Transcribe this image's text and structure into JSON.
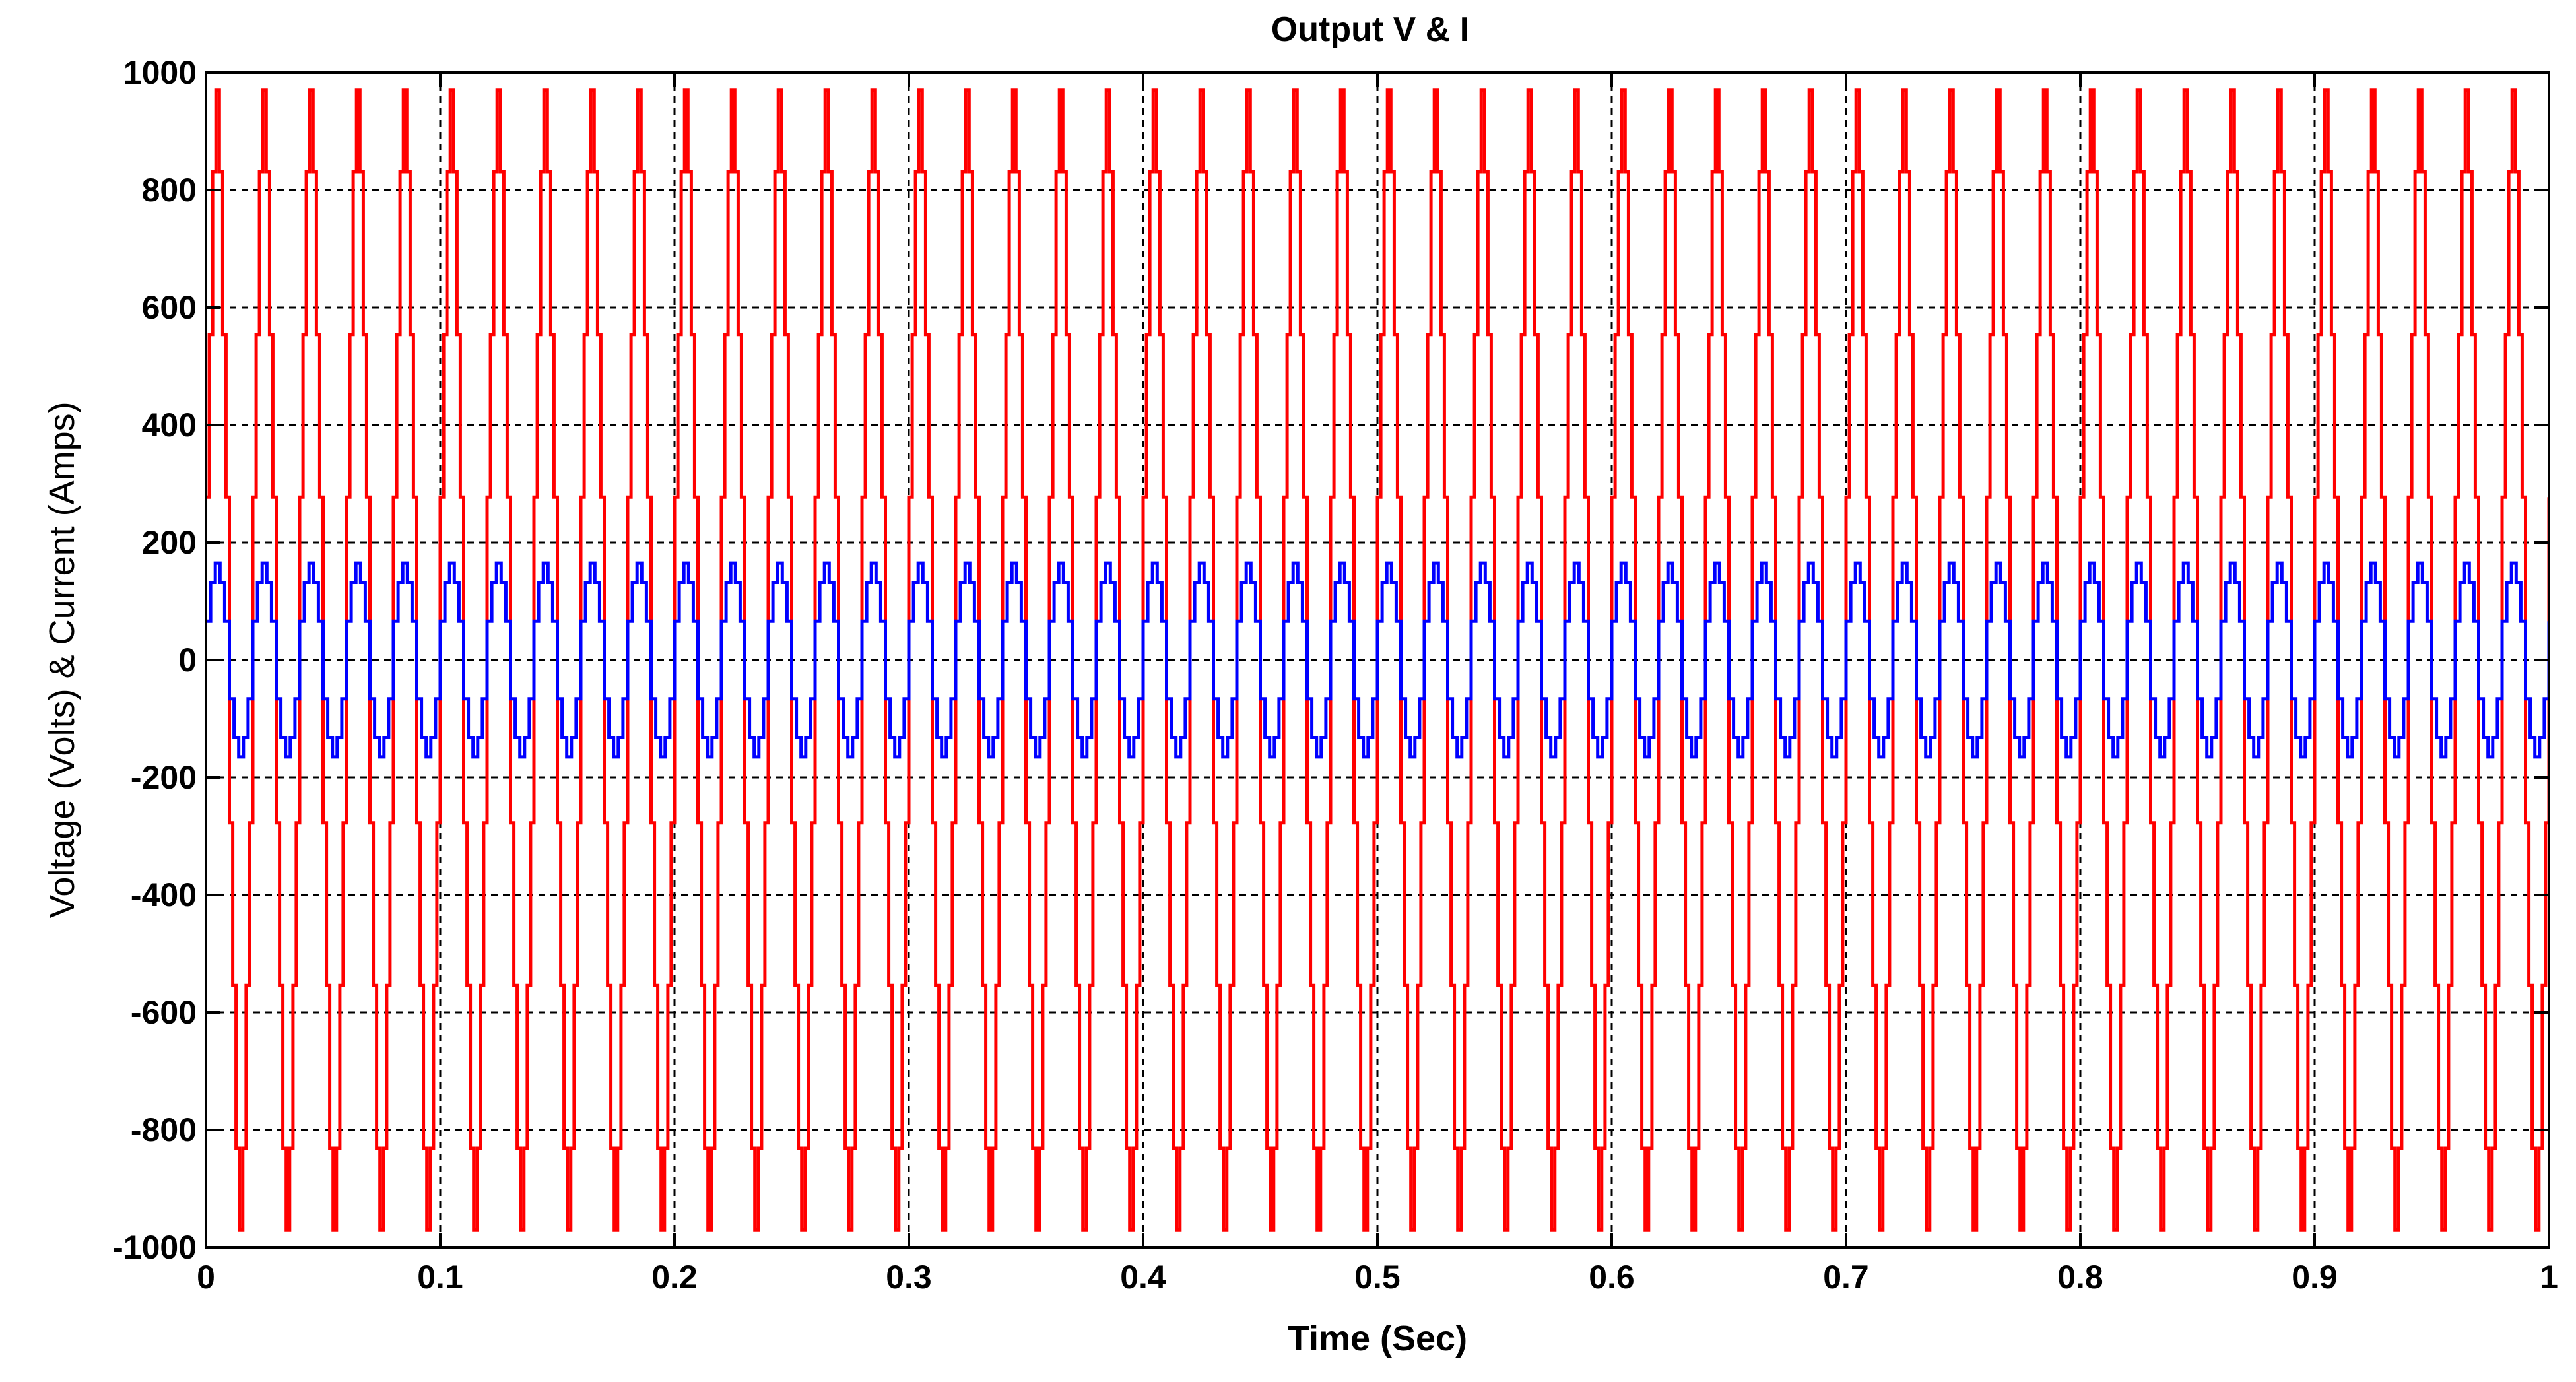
{
  "chart_data": {
    "type": "line",
    "title": "Output V & I",
    "xlabel": "Time (Sec)",
    "ylabel": "Voltage (Volts) & Current (Amps)",
    "xlim": [
      0,
      1
    ],
    "ylim": [
      -1000,
      1000
    ],
    "grid": true,
    "x_ticks": [
      "0",
      "0.1",
      "0.2",
      "0.3",
      "0.4",
      "0.5",
      "0.6",
      "0.7",
      "0.8",
      "0.9",
      "1"
    ],
    "x_tick_values": [
      0,
      0.1,
      0.2,
      0.3,
      0.4,
      0.5,
      0.6,
      0.7,
      0.8,
      0.9,
      1
    ],
    "y_ticks": [
      "1000",
      "800",
      "600",
      "400",
      "200",
      "0",
      "-200",
      "-400",
      "-600",
      "-800",
      "-1000"
    ],
    "y_tick_values": [
      1000,
      800,
      600,
      400,
      200,
      0,
      -200,
      -400,
      -600,
      -800,
      -1000
    ],
    "series": [
      {
        "name": "Voltage",
        "color": "#ff0000",
        "waveform": "stepped-sine",
        "amplitude": 970,
        "frequency_hz": 50,
        "phase_deg": 0,
        "steps_per_half_cycle": 7,
        "x_start": 0,
        "x_end": 1
      },
      {
        "name": "Current",
        "color": "#0000ff",
        "waveform": "stepped-sine",
        "amplitude": 165,
        "frequency_hz": 50,
        "phase_deg": 0,
        "steps_per_half_cycle": 5,
        "x_start": 0,
        "x_end": 1
      }
    ]
  }
}
